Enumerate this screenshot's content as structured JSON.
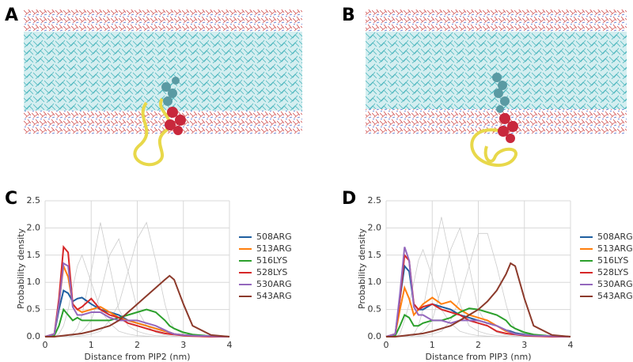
{
  "panels": [
    "A",
    "B",
    "C",
    "D"
  ],
  "chart_data": [
    {
      "type": "line",
      "xlabel": "Distance from PIP2 (nm)",
      "ylabel": "Probability density",
      "x": [
        0,
        0.2,
        0.3,
        0.4,
        0.5,
        0.6,
        0.7,
        0.8,
        1.0,
        1.2,
        1.4,
        1.6,
        1.8,
        2.0,
        2.2,
        2.4,
        2.6,
        2.7,
        2.8,
        3.0,
        3.2,
        3.6,
        4.0
      ],
      "xlim": [
        0,
        4
      ],
      "ylim": [
        0,
        2.5
      ],
      "xticks": [
        0,
        1,
        2,
        3,
        4
      ],
      "yticks": [
        {
          "value": 0,
          "label": "0.0"
        },
        0.5,
        {
          "value": 1,
          "label": "1.0"
        },
        1.5,
        {
          "value": 2,
          "label": "2.0"
        },
        2.5
      ],
      "grid": true,
      "series": [
        {
          "color": "#cccccc",
          "values": [
            0,
            0,
            0,
            0,
            0.02,
            0.05,
            0.15,
            0.4,
            1.2,
            2.1,
            1.3,
            0.5,
            0.2,
            0.1,
            0.05,
            0.02,
            0.01,
            0,
            0,
            0,
            0,
            0,
            0
          ]
        },
        {
          "color": "#cccccc",
          "values": [
            0,
            0,
            0,
            0,
            0,
            0.02,
            0.05,
            0.1,
            0.3,
            0.8,
            1.5,
            1.8,
            1.2,
            0.5,
            0.2,
            0.08,
            0.03,
            0.02,
            0.01,
            0,
            0,
            0,
            0
          ]
        },
        {
          "color": "#cccccc",
          "values": [
            0,
            0,
            0,
            0,
            0,
            0,
            0.01,
            0.02,
            0.05,
            0.1,
            0.3,
            0.6,
            1.2,
            1.8,
            2.1,
            1.4,
            0.6,
            0.3,
            0.15,
            0.05,
            0.01,
            0,
            0
          ]
        },
        {
          "color": "#cccccc",
          "values": [
            0,
            0,
            0.05,
            0.2,
            0.5,
            0.9,
            1.3,
            1.5,
            1.0,
            0.5,
            0.25,
            0.1,
            0.05,
            0.02,
            0.01,
            0,
            0,
            0,
            0,
            0,
            0,
            0,
            0
          ]
        },
        {
          "name": "508ARG",
          "color": "#1f5fa0",
          "values": [
            0,
            0.05,
            0.5,
            0.85,
            0.8,
            0.65,
            0.7,
            0.72,
            0.6,
            0.5,
            0.45,
            0.4,
            0.3,
            0.25,
            0.2,
            0.15,
            0.1,
            0.08,
            0.05,
            0.03,
            0.02,
            0.01,
            0
          ]
        },
        {
          "name": "513ARG",
          "color": "#ff7f0e",
          "values": [
            0,
            0.05,
            0.6,
            1.3,
            1.1,
            0.6,
            0.5,
            0.45,
            0.5,
            0.55,
            0.45,
            0.35,
            0.3,
            0.25,
            0.2,
            0.15,
            0.1,
            0.08,
            0.05,
            0.03,
            0.02,
            0.01,
            0
          ]
        },
        {
          "name": "516LYS",
          "color": "#2ca02c",
          "values": [
            0,
            0.02,
            0.2,
            0.5,
            0.4,
            0.3,
            0.35,
            0.3,
            0.3,
            0.3,
            0.3,
            0.35,
            0.4,
            0.45,
            0.5,
            0.45,
            0.3,
            0.2,
            0.15,
            0.08,
            0.04,
            0.01,
            0
          ]
        },
        {
          "name": "528LYS",
          "color": "#d62728",
          "values": [
            0,
            0.05,
            0.7,
            1.65,
            1.55,
            0.6,
            0.5,
            0.55,
            0.7,
            0.5,
            0.4,
            0.35,
            0.25,
            0.2,
            0.15,
            0.1,
            0.06,
            0.05,
            0.04,
            0.02,
            0.01,
            0,
            0
          ]
        },
        {
          "name": "530ARG",
          "color": "#9467bd",
          "values": [
            0,
            0.05,
            0.6,
            1.35,
            1.3,
            0.55,
            0.4,
            0.4,
            0.45,
            0.45,
            0.35,
            0.3,
            0.3,
            0.3,
            0.25,
            0.2,
            0.12,
            0.08,
            0.05,
            0.03,
            0.02,
            0.01,
            0
          ]
        },
        {
          "name": "543ARG",
          "color": "#8c3a2b",
          "values": [
            0,
            0,
            0.01,
            0.02,
            0.03,
            0.04,
            0.05,
            0.06,
            0.1,
            0.15,
            0.2,
            0.3,
            0.45,
            0.6,
            0.75,
            0.9,
            1.05,
            1.12,
            1.05,
            0.6,
            0.2,
            0.03,
            0
          ]
        }
      ]
    },
    {
      "type": "line",
      "xlabel": "Distance from PIP3 (nm)",
      "ylabel": "Probability density",
      "x": [
        0,
        0.2,
        0.3,
        0.4,
        0.5,
        0.6,
        0.7,
        0.8,
        1.0,
        1.2,
        1.4,
        1.6,
        1.8,
        2.0,
        2.2,
        2.4,
        2.6,
        2.7,
        2.8,
        3.0,
        3.2,
        3.6,
        4.0
      ],
      "xlim": [
        0,
        4
      ],
      "ylim": [
        0,
        2.5
      ],
      "xticks": [
        0,
        1,
        2,
        3,
        4
      ],
      "yticks": [
        {
          "value": 0,
          "label": "0.0"
        },
        0.5,
        {
          "value": 1,
          "label": "1.0"
        },
        1.5,
        {
          "value": 2,
          "label": "2.0"
        },
        2.5
      ],
      "grid": true,
      "series": [
        {
          "color": "#cccccc",
          "values": [
            0,
            0,
            0,
            0,
            0.02,
            0.05,
            0.2,
            0.5,
            1.4,
            2.2,
            1.4,
            0.6,
            0.2,
            0.1,
            0.05,
            0.02,
            0.01,
            0,
            0,
            0,
            0,
            0,
            0
          ]
        },
        {
          "color": "#cccccc",
          "values": [
            0,
            0,
            0,
            0,
            0,
            0.02,
            0.05,
            0.1,
            0.3,
            0.9,
            1.6,
            2.0,
            1.3,
            0.5,
            0.2,
            0.08,
            0.03,
            0.02,
            0.01,
            0,
            0,
            0,
            0
          ]
        },
        {
          "color": "#cccccc",
          "values": [
            0,
            0,
            0,
            0,
            0,
            0,
            0.01,
            0.02,
            0.05,
            0.1,
            0.3,
            0.7,
            1.3,
            1.9,
            1.9,
            1.3,
            0.6,
            0.3,
            0.15,
            0.05,
            0.01,
            0,
            0
          ]
        },
        {
          "color": "#cccccc",
          "values": [
            0,
            0,
            0.05,
            0.3,
            0.6,
            1.0,
            1.4,
            1.6,
            1.1,
            0.5,
            0.25,
            0.1,
            0.05,
            0.02,
            0.01,
            0,
            0,
            0,
            0,
            0,
            0,
            0,
            0
          ]
        },
        {
          "name": "508ARG",
          "color": "#1f5fa0",
          "values": [
            0,
            0.05,
            0.7,
            1.3,
            1.2,
            0.6,
            0.5,
            0.5,
            0.6,
            0.55,
            0.5,
            0.4,
            0.35,
            0.3,
            0.25,
            0.2,
            0.12,
            0.1,
            0.07,
            0.04,
            0.02,
            0.01,
            0
          ]
        },
        {
          "name": "513ARG",
          "color": "#ff7f0e",
          "values": [
            0,
            0.05,
            0.5,
            0.9,
            0.7,
            0.4,
            0.5,
            0.6,
            0.72,
            0.6,
            0.65,
            0.5,
            0.4,
            0.35,
            0.3,
            0.2,
            0.1,
            0.08,
            0.05,
            0.03,
            0.02,
            0.01,
            0
          ]
        },
        {
          "name": "516LYS",
          "color": "#2ca02c",
          "values": [
            0,
            0.02,
            0.2,
            0.4,
            0.35,
            0.2,
            0.2,
            0.25,
            0.3,
            0.3,
            0.35,
            0.45,
            0.52,
            0.5,
            0.45,
            0.4,
            0.3,
            0.2,
            0.15,
            0.08,
            0.04,
            0.01,
            0
          ]
        },
        {
          "name": "528LYS",
          "color": "#d62728",
          "values": [
            0,
            0.05,
            0.7,
            1.5,
            1.4,
            0.6,
            0.5,
            0.55,
            0.6,
            0.5,
            0.45,
            0.4,
            0.3,
            0.25,
            0.2,
            0.1,
            0.06,
            0.05,
            0.04,
            0.02,
            0.01,
            0,
            0
          ]
        },
        {
          "name": "530ARG",
          "color": "#9467bd",
          "values": [
            0,
            0.05,
            0.8,
            1.65,
            1.4,
            0.55,
            0.4,
            0.4,
            0.3,
            0.3,
            0.25,
            0.3,
            0.3,
            0.3,
            0.25,
            0.2,
            0.12,
            0.08,
            0.05,
            0.03,
            0.02,
            0.01,
            0
          ]
        },
        {
          "name": "543ARG",
          "color": "#8c3a2b",
          "values": [
            0,
            0,
            0.01,
            0.02,
            0.03,
            0.04,
            0.05,
            0.06,
            0.1,
            0.15,
            0.2,
            0.3,
            0.4,
            0.5,
            0.65,
            0.85,
            1.15,
            1.35,
            1.3,
            0.7,
            0.2,
            0.03,
            0
          ]
        }
      ]
    }
  ]
}
